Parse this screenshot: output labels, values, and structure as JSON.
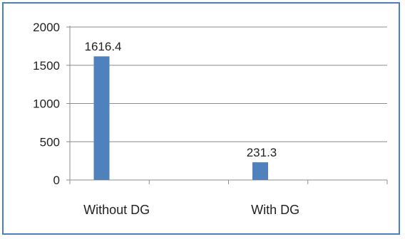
{
  "chart_data": {
    "type": "bar",
    "categories": [
      "Without DG",
      "With DG"
    ],
    "values": [
      1616.4,
      231.3
    ],
    "data_labels": [
      "1616.4",
      "231.3"
    ],
    "title": "",
    "xlabel": "",
    "ylabel": "",
    "ylim": [
      0,
      2000
    ],
    "yticks": [
      "0",
      "500",
      "1000",
      "1500",
      "2000"
    ],
    "grid": true,
    "legend": "none",
    "bar_color": "#4f81bd",
    "border_color": "#4a7ec8"
  }
}
